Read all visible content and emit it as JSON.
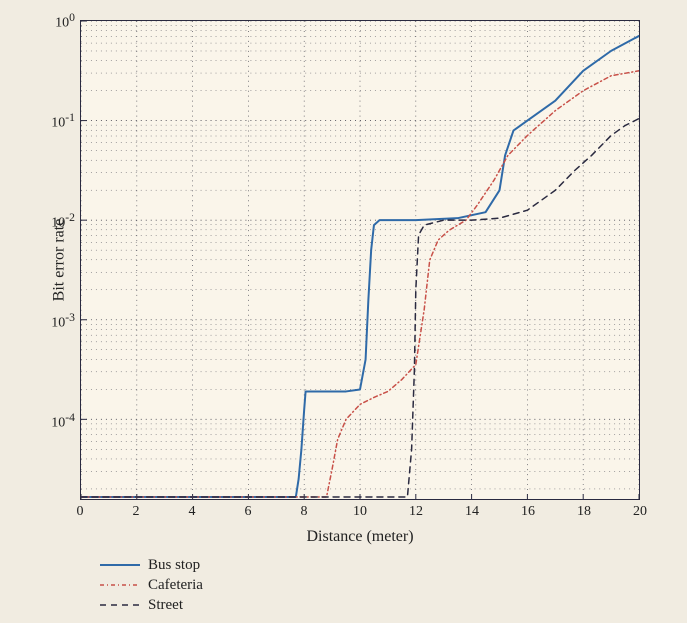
{
  "chart": {
    "type": "line",
    "background_color": "#faf5ea",
    "page_background_color": "#f1ece1",
    "border_color": "#2a2a40",
    "grid_color": "#4a4a55",
    "xlabel": "Distance (meter)",
    "ylabel": "Bit error rate",
    "label_fontsize": 16,
    "tick_fontsize": 14,
    "xlim": [
      0,
      20
    ],
    "xtick_step": 2,
    "xticks": [
      "0",
      "2",
      "4",
      "6",
      "8",
      "10",
      "12",
      "14",
      "16",
      "18",
      "20"
    ],
    "yscale": "log",
    "ylim_exp": [
      -4.8,
      0
    ],
    "ymajor_exp": [
      -4,
      -3,
      -2,
      -1,
      0
    ],
    "ytick_labels": [
      "10^{-4}",
      "10^{-3}",
      "10^{-2}",
      "10^{-1}",
      "10^{0}"
    ],
    "minor_log_ticks": [
      2,
      3,
      4,
      5,
      6,
      7,
      8,
      9
    ],
    "series": [
      {
        "name": "Bus stop",
        "color": "#2f6aa8",
        "dash": "solid",
        "line_width": 2,
        "data_exp": [
          [
            0,
            -4.78
          ],
          [
            7.7,
            -4.78
          ],
          [
            7.8,
            -4.6
          ],
          [
            7.9,
            -4.3
          ],
          [
            8.0,
            -3.9
          ],
          [
            8.05,
            -3.72
          ],
          [
            8.2,
            -3.72
          ],
          [
            9.5,
            -3.72
          ],
          [
            10.0,
            -3.7
          ],
          [
            10.2,
            -3.4
          ],
          [
            10.3,
            -2.8
          ],
          [
            10.4,
            -2.3
          ],
          [
            10.5,
            -2.05
          ],
          [
            10.7,
            -2.0
          ],
          [
            12.0,
            -2.0
          ],
          [
            13.5,
            -1.98
          ],
          [
            14.5,
            -1.92
          ],
          [
            15.0,
            -1.7
          ],
          [
            15.2,
            -1.35
          ],
          [
            15.5,
            -1.1
          ],
          [
            16.0,
            -1.0
          ],
          [
            17.0,
            -0.8
          ],
          [
            18.0,
            -0.5
          ],
          [
            19.0,
            -0.3
          ],
          [
            20.0,
            -0.15
          ]
        ]
      },
      {
        "name": "Cafeteria",
        "color": "#c85048",
        "dash": "4 3 1 3",
        "line_width": 1.5,
        "data_exp": [
          [
            0,
            -4.78
          ],
          [
            8.8,
            -4.78
          ],
          [
            9.0,
            -4.5
          ],
          [
            9.2,
            -4.2
          ],
          [
            9.5,
            -4.0
          ],
          [
            10.0,
            -3.85
          ],
          [
            10.5,
            -3.78
          ],
          [
            11.0,
            -3.72
          ],
          [
            11.5,
            -3.6
          ],
          [
            12.0,
            -3.45
          ],
          [
            12.3,
            -2.9
          ],
          [
            12.5,
            -2.4
          ],
          [
            12.8,
            -2.2
          ],
          [
            13.2,
            -2.1
          ],
          [
            13.8,
            -2.0
          ],
          [
            14.2,
            -1.85
          ],
          [
            14.8,
            -1.6
          ],
          [
            15.3,
            -1.35
          ],
          [
            16.0,
            -1.15
          ],
          [
            17.0,
            -0.9
          ],
          [
            18.0,
            -0.7
          ],
          [
            19.0,
            -0.55
          ],
          [
            20.0,
            -0.5
          ]
        ]
      },
      {
        "name": "Street",
        "color": "#2a2a40",
        "dash": "6 5",
        "line_width": 1.5,
        "data_exp": [
          [
            0,
            -4.78
          ],
          [
            11.7,
            -4.78
          ],
          [
            11.85,
            -4.3
          ],
          [
            11.95,
            -3.5
          ],
          [
            12.0,
            -2.7
          ],
          [
            12.1,
            -2.15
          ],
          [
            12.3,
            -2.05
          ],
          [
            13.0,
            -2.0
          ],
          [
            14.0,
            -2.0
          ],
          [
            15.0,
            -1.98
          ],
          [
            16.0,
            -1.9
          ],
          [
            16.5,
            -1.8
          ],
          [
            17.0,
            -1.7
          ],
          [
            17.7,
            -1.5
          ],
          [
            18.3,
            -1.35
          ],
          [
            19.0,
            -1.15
          ],
          [
            19.5,
            -1.05
          ],
          [
            20.0,
            -0.98
          ]
        ]
      }
    ],
    "legend_position": "below",
    "legend_swatch_width": 40
  }
}
